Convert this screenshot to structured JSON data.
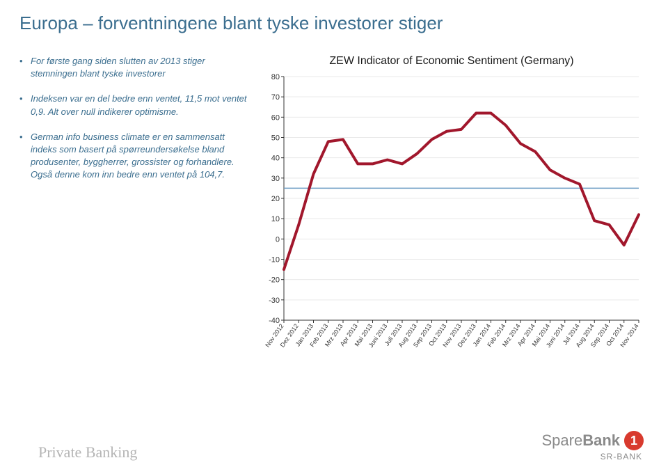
{
  "title": "Europa – forventningene blant tyske investorer stiger",
  "bullets": [
    "For første gang siden slutten av 2013 stiger stemningen blant tyske investorer",
    "Indeksen var en del bedre enn ventet, 11,5 mot ventet 0,9. Alt over null indikerer optimisme.",
    "German info business climate er en sammensatt indeks som basert på spørreundersøkelse bland produsenter, byggherrer, grossister og forhandlere. Også denne kom inn bedre enn ventet på 104,7."
  ],
  "chart": {
    "title": "ZEW Indicator of Economic Sentiment (Germany)",
    "type": "line",
    "title_fontsize": 16,
    "background_color": "#ffffff",
    "grid_color": "#e9e9e9",
    "axis_color": "#333333",
    "line_color": "#a1172c",
    "line_width": 4,
    "ref_line_color": "#6a9bc3",
    "ref_line_y": 25,
    "tick_fontsize": 10,
    "ylim": [
      -40,
      80
    ],
    "ytick_step": 10,
    "x_labels": [
      "Nov 2012",
      "Dez 2012",
      "Jan 2013",
      "Feb 2013",
      "Mrz 2013",
      "Apr 2013",
      "Mai 2013",
      "Juni 2013",
      "Juli 2013",
      "Aug 2013",
      "Sep 2013",
      "Oct 2013",
      "Nov 2013",
      "Dez 2013",
      "Jan 2014",
      "Feb 2014",
      "Mrz 2014",
      "Apr 2014",
      "Mai 2014",
      "Juni 2014",
      "Jul 2014",
      "Aug 2014",
      "Sep 2014",
      "Oct 2014",
      "Nov 2014"
    ],
    "values": [
      -15.0,
      7.0,
      32.0,
      48.0,
      49.0,
      37.0,
      37.0,
      39.0,
      37.0,
      42.0,
      49.0,
      53.0,
      54.0,
      62.0,
      62.0,
      56.0,
      47.0,
      43.0,
      34.0,
      30.0,
      27.0,
      9.0,
      7.0,
      -3.0,
      12.0
    ]
  },
  "footer": {
    "left": "Private Banking",
    "brand_a": "Spare",
    "brand_b": "Bank",
    "brand_mark": "1",
    "brand_sub": "SR-BANK"
  }
}
